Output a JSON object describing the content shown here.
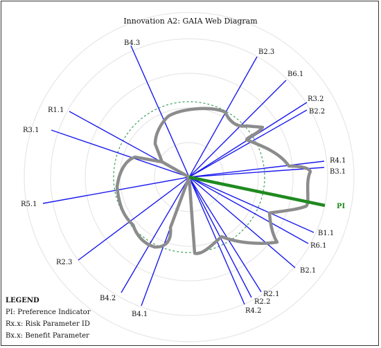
{
  "title": "Innovation A2: GAIA Web Diagram",
  "colors": {
    "axis": "#1a1aee",
    "pi": "#1f8a1f",
    "profile": "#8c8c8c",
    "grid": "#e6e6e6",
    "dashed": "#3aa05a"
  },
  "axes": [
    {
      "id": "B4.3",
      "label": "B4.3"
    },
    {
      "id": "B2.3",
      "label": "B2.3"
    },
    {
      "id": "B6.1",
      "label": "B6.1"
    },
    {
      "id": "R3.2",
      "label": "R3.2"
    },
    {
      "id": "B2.2",
      "label": "B2.2"
    },
    {
      "id": "R4.1",
      "label": "R4.1"
    },
    {
      "id": "B3.1",
      "label": "B3.1"
    },
    {
      "id": "B1.1",
      "label": "B1.1"
    },
    {
      "id": "R6.1",
      "label": "R6.1"
    },
    {
      "id": "B2.1",
      "label": "B2.1"
    },
    {
      "id": "R2.1",
      "label": "R2.1"
    },
    {
      "id": "R2.2",
      "label": "R2.2"
    },
    {
      "id": "R4.2",
      "label": "R4.2"
    },
    {
      "id": "B4.1",
      "label": "B4.1"
    },
    {
      "id": "B4.2",
      "label": "B4.2"
    },
    {
      "id": "R2.3",
      "label": "R2.3"
    },
    {
      "id": "R5.1",
      "label": "R5.1"
    },
    {
      "id": "R3.1",
      "label": "R3.1"
    },
    {
      "id": "R1.1",
      "label": "R1.1"
    }
  ],
  "pi": {
    "label": "PI"
  },
  "legend": {
    "title": "LEGEND",
    "items": [
      "PI: Preference Indicator",
      "Rx.x: Risk Parameter ID",
      "Bx.x: Benefit Parameter"
    ]
  }
}
